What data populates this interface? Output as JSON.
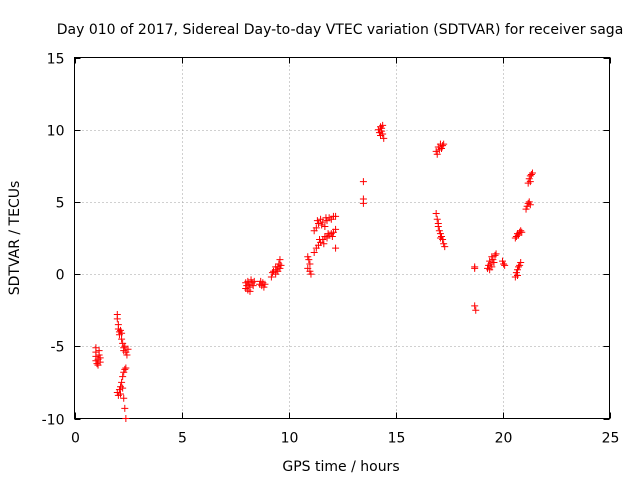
{
  "chart_data": {
    "type": "scatter",
    "title": "Day 010 of 2017, Sidereal Day-to-day VTEC variation (SDTVAR) for receiver saga",
    "xlabel": "GPS time / hours",
    "ylabel": "SDTVAR / TECUs",
    "xlim": [
      0,
      25
    ],
    "ylim": [
      -10,
      15
    ],
    "xticks": [
      0,
      5,
      10,
      15,
      20,
      25
    ],
    "yticks": [
      -10,
      -5,
      0,
      5,
      10,
      15
    ],
    "xtick_labels": [
      "0",
      "5",
      "10",
      "15",
      "20",
      "25"
    ],
    "ytick_labels": [
      "-10",
      "-5",
      "0",
      "5",
      "10",
      "15"
    ],
    "grid": true,
    "marker": "+",
    "color": "#ff0000",
    "series": [
      {
        "name": "SDTVAR",
        "points": [
          [
            1.0,
            -5.1
          ],
          [
            1.0,
            -5.4
          ],
          [
            1.0,
            -5.7
          ],
          [
            1.0,
            -6.0
          ],
          [
            1.05,
            -6.2
          ],
          [
            1.1,
            -6.3
          ],
          [
            1.1,
            -5.9
          ],
          [
            1.15,
            -5.6
          ],
          [
            1.15,
            -5.3
          ],
          [
            1.2,
            -5.8
          ],
          [
            1.2,
            -6.1
          ],
          [
            2.0,
            -2.8
          ],
          [
            2.0,
            -3.1
          ],
          [
            2.05,
            -3.5
          ],
          [
            2.05,
            -3.8
          ],
          [
            2.1,
            -4.0
          ],
          [
            2.1,
            -4.2
          ],
          [
            2.15,
            -3.9
          ],
          [
            2.2,
            -4.1
          ],
          [
            2.2,
            -4.5
          ],
          [
            2.25,
            -4.8
          ],
          [
            2.3,
            -5.1
          ],
          [
            2.3,
            -5.3
          ],
          [
            2.35,
            -5.0
          ],
          [
            2.4,
            -5.4
          ],
          [
            2.45,
            -5.6
          ],
          [
            2.5,
            -5.2
          ],
          [
            2.0,
            -8.2
          ],
          [
            2.05,
            -8.4
          ],
          [
            2.1,
            -8.0
          ],
          [
            2.15,
            -7.8
          ],
          [
            2.2,
            -7.5
          ],
          [
            2.25,
            -7.1
          ],
          [
            2.3,
            -6.8
          ],
          [
            2.35,
            -6.6
          ],
          [
            2.4,
            -6.5
          ],
          [
            2.3,
            -8.6
          ],
          [
            2.35,
            -9.3
          ],
          [
            2.4,
            -10.0
          ],
          [
            2.15,
            -8.3
          ],
          [
            2.25,
            -7.9
          ],
          [
            8.0,
            -0.6
          ],
          [
            8.0,
            -1.0
          ],
          [
            8.05,
            -0.8
          ],
          [
            8.1,
            -0.5
          ],
          [
            8.1,
            -1.1
          ],
          [
            8.15,
            -0.7
          ],
          [
            8.2,
            -0.9
          ],
          [
            8.25,
            -0.4
          ],
          [
            8.3,
            -0.6
          ],
          [
            8.35,
            -0.8
          ],
          [
            8.4,
            -0.5
          ],
          [
            8.2,
            -1.2
          ],
          [
            8.7,
            -0.5
          ],
          [
            8.75,
            -0.8
          ],
          [
            8.8,
            -0.6
          ],
          [
            8.85,
            -0.9
          ],
          [
            8.9,
            -0.7
          ],
          [
            8.65,
            -0.7
          ],
          [
            9.2,
            -0.2
          ],
          [
            9.25,
            0.1
          ],
          [
            9.3,
            0.2
          ],
          [
            9.4,
            0.0
          ],
          [
            9.45,
            0.3
          ],
          [
            9.5,
            0.5
          ],
          [
            9.55,
            0.7
          ],
          [
            9.6,
            1.0
          ],
          [
            9.5,
            0.2
          ],
          [
            9.6,
            0.4
          ],
          [
            9.65,
            0.6
          ],
          [
            9.4,
            0.5
          ],
          [
            10.9,
            1.2
          ],
          [
            10.95,
            1.0
          ],
          [
            11.0,
            0.7
          ],
          [
            11.0,
            0.2
          ],
          [
            11.05,
            0.0
          ],
          [
            10.9,
            0.4
          ],
          [
            11.2,
            3.0
          ],
          [
            11.3,
            3.2
          ],
          [
            11.4,
            3.5
          ],
          [
            11.5,
            3.8
          ],
          [
            11.6,
            3.6
          ],
          [
            11.7,
            3.3
          ],
          [
            11.8,
            3.7
          ],
          [
            11.9,
            3.9
          ],
          [
            12.0,
            3.8
          ],
          [
            12.1,
            4.0
          ],
          [
            12.2,
            4.0
          ],
          [
            11.35,
            3.7
          ],
          [
            11.55,
            3.4
          ],
          [
            11.75,
            3.9
          ],
          [
            11.2,
            1.5
          ],
          [
            11.3,
            1.8
          ],
          [
            11.4,
            2.0
          ],
          [
            11.5,
            2.2
          ],
          [
            11.6,
            2.4
          ],
          [
            11.7,
            2.6
          ],
          [
            11.8,
            2.5
          ],
          [
            11.9,
            2.7
          ],
          [
            12.0,
            2.8
          ],
          [
            12.1,
            2.9
          ],
          [
            12.2,
            3.1
          ],
          [
            12.2,
            1.8
          ],
          [
            11.45,
            2.4
          ],
          [
            11.65,
            2.1
          ],
          [
            11.85,
            2.8
          ],
          [
            12.05,
            2.6
          ],
          [
            13.5,
            6.4
          ],
          [
            13.5,
            5.2
          ],
          [
            13.5,
            4.9
          ],
          [
            14.2,
            10.0
          ],
          [
            14.25,
            9.8
          ],
          [
            14.3,
            9.6
          ],
          [
            14.3,
            10.2
          ],
          [
            14.35,
            9.9
          ],
          [
            14.4,
            10.3
          ],
          [
            14.4,
            9.7
          ],
          [
            14.45,
            9.4
          ],
          [
            14.35,
            10.1
          ],
          [
            16.9,
            8.5
          ],
          [
            17.0,
            8.8
          ],
          [
            17.05,
            8.6
          ],
          [
            17.1,
            9.0
          ],
          [
            17.15,
            8.7
          ],
          [
            17.2,
            8.9
          ],
          [
            17.25,
            9.0
          ],
          [
            16.95,
            8.3
          ],
          [
            16.9,
            4.2
          ],
          [
            16.95,
            3.8
          ],
          [
            17.0,
            3.5
          ],
          [
            17.05,
            3.0
          ],
          [
            17.1,
            2.8
          ],
          [
            17.15,
            2.6
          ],
          [
            17.2,
            2.4
          ],
          [
            17.25,
            2.1
          ],
          [
            17.3,
            1.9
          ],
          [
            17.1,
            2.5
          ],
          [
            17.0,
            3.3
          ],
          [
            18.7,
            0.4
          ],
          [
            18.7,
            0.5
          ],
          [
            18.7,
            -2.2
          ],
          [
            18.75,
            -2.5
          ],
          [
            19.3,
            0.4
          ],
          [
            19.35,
            0.6
          ],
          [
            19.4,
            0.9
          ],
          [
            19.45,
            0.7
          ],
          [
            19.5,
            1.2
          ],
          [
            19.55,
            1.0
          ],
          [
            19.6,
            0.8
          ],
          [
            19.65,
            1.3
          ],
          [
            19.7,
            1.4
          ],
          [
            19.4,
            0.3
          ],
          [
            19.5,
            0.5
          ],
          [
            20.0,
            0.9
          ],
          [
            20.05,
            0.7
          ],
          [
            20.1,
            0.6
          ],
          [
            20.6,
            -0.2
          ],
          [
            20.65,
            0.1
          ],
          [
            20.7,
            0.3
          ],
          [
            20.75,
            0.5
          ],
          [
            20.8,
            0.6
          ],
          [
            20.85,
            0.8
          ],
          [
            20.7,
            -0.1
          ],
          [
            20.6,
            2.5
          ],
          [
            20.65,
            2.6
          ],
          [
            20.7,
            2.8
          ],
          [
            20.75,
            2.7
          ],
          [
            20.8,
            2.9
          ],
          [
            20.85,
            3.0
          ],
          [
            20.9,
            2.9
          ],
          [
            21.1,
            4.5
          ],
          [
            21.15,
            4.7
          ],
          [
            21.2,
            4.9
          ],
          [
            21.25,
            5.0
          ],
          [
            21.3,
            4.8
          ],
          [
            21.2,
            6.3
          ],
          [
            21.25,
            6.6
          ],
          [
            21.3,
            6.8
          ],
          [
            21.35,
            6.9
          ],
          [
            21.4,
            7.0
          ],
          [
            21.3,
            6.4
          ]
        ]
      }
    ]
  }
}
